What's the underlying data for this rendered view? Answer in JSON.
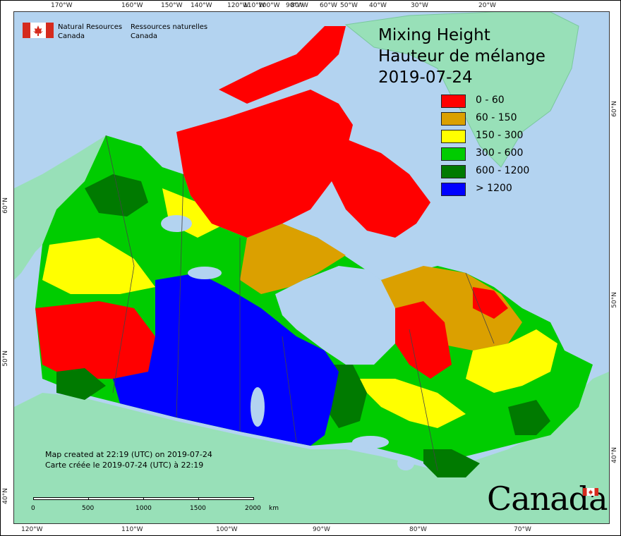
{
  "title": {
    "line1": "Mixing Height",
    "line2": "Hauteur de mélange",
    "date": "2019-07-24"
  },
  "legend": [
    {
      "label": "0 - 60",
      "color": "#ff0000"
    },
    {
      "label": "60 - 150",
      "color": "#dba000"
    },
    {
      "label": "150 - 300",
      "color": "#ffff00"
    },
    {
      "label": "300 - 600",
      "color": "#00cc00"
    },
    {
      "label": "600 - 1200",
      "color": "#007a00"
    },
    {
      "label": "> 1200",
      "color": "#0000ff"
    }
  ],
  "agency": {
    "en_line1": "Natural Resources",
    "en_line2": "Canada",
    "fr_line1": "Ressources naturelles",
    "fr_line2": "Canada"
  },
  "credit": {
    "en": "Map created at 22:19 (UTC) on 2019-07-24",
    "fr": "Carte créée le 2019-07-24 (UTC) à 22:19"
  },
  "scalebar": {
    "ticks": [
      "0",
      "500",
      "1000",
      "1500",
      "2000"
    ],
    "unit": "km"
  },
  "wordmark": "Canada",
  "graticule": {
    "top": [
      "170°W",
      "160°W",
      "150°W",
      "140°W",
      "120°W",
      "110°W",
      "100°W",
      "90°W",
      "80°W",
      "60°W",
      "50°W",
      "40°W",
      "30°W",
      "20°W"
    ],
    "bottom": [
      "120°W",
      "110°W",
      "100°W",
      "90°W",
      "80°W",
      "70°W"
    ],
    "left": [
      "60°N",
      "50°N",
      "40°N"
    ],
    "right": [
      "60°N",
      "50°N",
      "40°N"
    ]
  },
  "colors": {
    "ocean": "#b3d3f0",
    "land_outside": "#98e0b8",
    "water_inland": "#b3d3f0"
  }
}
